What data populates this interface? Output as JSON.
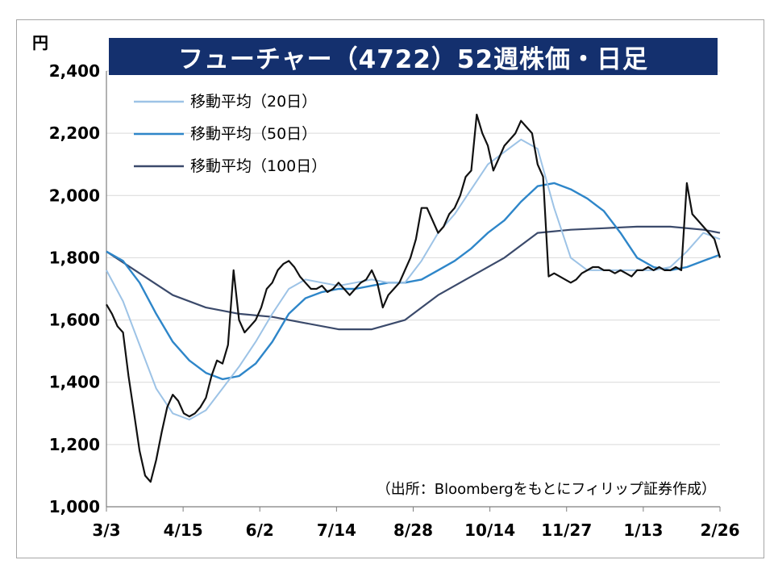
{
  "chart_data": {
    "type": "line",
    "title": "フューチャー（4722）52週株価・日足",
    "unit_label": "円",
    "source_note": "（出所：Bloombergをもとにフィリップ証券作成）",
    "ylim": [
      1000,
      2400
    ],
    "yticks": [
      "1,000",
      "1,200",
      "1,400",
      "1,600",
      "1,800",
      "2,000",
      "2,200",
      "2,400"
    ],
    "ytick_values": [
      1000,
      1200,
      1400,
      1600,
      1800,
      2000,
      2200,
      2400
    ],
    "xticks": [
      "3/3",
      "4/15",
      "6/2",
      "7/14",
      "8/28",
      "10/14",
      "11/27",
      "1/13",
      "2/26"
    ],
    "grid": true,
    "legend_position": "top-left",
    "colors": {
      "price": "#111111",
      "ma20": "#9dc3e6",
      "ma50": "#2e86c9",
      "ma100": "#3b4a6b"
    },
    "series": [
      {
        "name": "price",
        "values": [
          [
            0,
            1650
          ],
          [
            1,
            1620
          ],
          [
            2,
            1580
          ],
          [
            3,
            1560
          ],
          [
            4,
            1420
          ],
          [
            5,
            1300
          ],
          [
            6,
            1180
          ],
          [
            7,
            1100
          ],
          [
            8,
            1080
          ],
          [
            9,
            1150
          ],
          [
            10,
            1240
          ],
          [
            11,
            1320
          ],
          [
            12,
            1360
          ],
          [
            13,
            1340
          ],
          [
            14,
            1300
          ],
          [
            15,
            1290
          ],
          [
            16,
            1300
          ],
          [
            17,
            1320
          ],
          [
            18,
            1350
          ],
          [
            19,
            1420
          ],
          [
            20,
            1470
          ],
          [
            21,
            1460
          ],
          [
            22,
            1520
          ],
          [
            23,
            1760
          ],
          [
            24,
            1600
          ],
          [
            25,
            1560
          ],
          [
            26,
            1580
          ],
          [
            27,
            1600
          ],
          [
            28,
            1640
          ],
          [
            29,
            1700
          ],
          [
            30,
            1720
          ],
          [
            31,
            1760
          ],
          [
            32,
            1780
          ],
          [
            33,
            1790
          ],
          [
            34,
            1770
          ],
          [
            35,
            1740
          ],
          [
            36,
            1720
          ],
          [
            37,
            1700
          ],
          [
            38,
            1700
          ],
          [
            39,
            1710
          ],
          [
            40,
            1690
          ],
          [
            41,
            1700
          ],
          [
            42,
            1720
          ],
          [
            43,
            1700
          ],
          [
            44,
            1680
          ],
          [
            45,
            1700
          ],
          [
            46,
            1720
          ],
          [
            47,
            1730
          ],
          [
            48,
            1760
          ],
          [
            49,
            1720
          ],
          [
            50,
            1640
          ],
          [
            51,
            1680
          ],
          [
            52,
            1700
          ],
          [
            53,
            1720
          ],
          [
            54,
            1760
          ],
          [
            55,
            1800
          ],
          [
            56,
            1860
          ],
          [
            57,
            1960
          ],
          [
            58,
            1960
          ],
          [
            59,
            1920
          ],
          [
            60,
            1880
          ],
          [
            61,
            1900
          ],
          [
            62,
            1940
          ],
          [
            63,
            1960
          ],
          [
            64,
            2000
          ],
          [
            65,
            2060
          ],
          [
            66,
            2080
          ],
          [
            67,
            2260
          ],
          [
            68,
            2200
          ],
          [
            69,
            2160
          ],
          [
            70,
            2080
          ],
          [
            71,
            2120
          ],
          [
            72,
            2160
          ],
          [
            73,
            2180
          ],
          [
            74,
            2200
          ],
          [
            75,
            2240
          ],
          [
            76,
            2220
          ],
          [
            77,
            2200
          ],
          [
            78,
            2100
          ],
          [
            79,
            2060
          ],
          [
            80,
            1740
          ],
          [
            81,
            1750
          ],
          [
            82,
            1740
          ],
          [
            83,
            1730
          ],
          [
            84,
            1720
          ],
          [
            85,
            1730
          ],
          [
            86,
            1750
          ],
          [
            87,
            1760
          ],
          [
            88,
            1770
          ],
          [
            89,
            1770
          ],
          [
            90,
            1760
          ],
          [
            91,
            1760
          ],
          [
            92,
            1750
          ],
          [
            93,
            1760
          ],
          [
            94,
            1750
          ],
          [
            95,
            1740
          ],
          [
            96,
            1760
          ],
          [
            97,
            1760
          ],
          [
            98,
            1770
          ],
          [
            99,
            1760
          ],
          [
            100,
            1770
          ],
          [
            101,
            1760
          ],
          [
            102,
            1760
          ],
          [
            103,
            1770
          ],
          [
            104,
            1760
          ],
          [
            105,
            2040
          ],
          [
            106,
            1940
          ],
          [
            107,
            1920
          ],
          [
            108,
            1900
          ],
          [
            109,
            1880
          ],
          [
            110,
            1860
          ],
          [
            111,
            1800
          ]
        ]
      },
      {
        "name": "移動平均（20日）",
        "values": [
          [
            0,
            1760
          ],
          [
            3,
            1660
          ],
          [
            6,
            1520
          ],
          [
            9,
            1380
          ],
          [
            12,
            1300
          ],
          [
            15,
            1280
          ],
          [
            18,
            1310
          ],
          [
            21,
            1380
          ],
          [
            24,
            1450
          ],
          [
            27,
            1530
          ],
          [
            30,
            1620
          ],
          [
            33,
            1700
          ],
          [
            36,
            1730
          ],
          [
            39,
            1720
          ],
          [
            42,
            1710
          ],
          [
            45,
            1720
          ],
          [
            48,
            1730
          ],
          [
            51,
            1720
          ],
          [
            54,
            1720
          ],
          [
            57,
            1790
          ],
          [
            60,
            1880
          ],
          [
            63,
            1940
          ],
          [
            66,
            2020
          ],
          [
            69,
            2100
          ],
          [
            72,
            2140
          ],
          [
            75,
            2180
          ],
          [
            78,
            2150
          ],
          [
            81,
            1960
          ],
          [
            84,
            1800
          ],
          [
            87,
            1760
          ],
          [
            90,
            1760
          ],
          [
            93,
            1760
          ],
          [
            96,
            1760
          ],
          [
            99,
            1760
          ],
          [
            102,
            1770
          ],
          [
            105,
            1820
          ],
          [
            108,
            1880
          ],
          [
            111,
            1860
          ]
        ]
      },
      {
        "name": "移動平均（50日）",
        "values": [
          [
            0,
            1820
          ],
          [
            3,
            1790
          ],
          [
            6,
            1720
          ],
          [
            9,
            1620
          ],
          [
            12,
            1530
          ],
          [
            15,
            1470
          ],
          [
            18,
            1430
          ],
          [
            21,
            1410
          ],
          [
            24,
            1420
          ],
          [
            27,
            1460
          ],
          [
            30,
            1530
          ],
          [
            33,
            1620
          ],
          [
            36,
            1670
          ],
          [
            39,
            1690
          ],
          [
            42,
            1700
          ],
          [
            45,
            1700
          ],
          [
            48,
            1710
          ],
          [
            51,
            1720
          ],
          [
            54,
            1720
          ],
          [
            57,
            1730
          ],
          [
            60,
            1760
          ],
          [
            63,
            1790
          ],
          [
            66,
            1830
          ],
          [
            69,
            1880
          ],
          [
            72,
            1920
          ],
          [
            75,
            1980
          ],
          [
            78,
            2030
          ],
          [
            81,
            2040
          ],
          [
            84,
            2020
          ],
          [
            87,
            1990
          ],
          [
            90,
            1950
          ],
          [
            93,
            1880
          ],
          [
            96,
            1800
          ],
          [
            99,
            1770
          ],
          [
            102,
            1760
          ],
          [
            105,
            1770
          ],
          [
            108,
            1790
          ],
          [
            111,
            1810
          ]
        ]
      },
      {
        "name": "移動平均（100日）",
        "values": [
          [
            0,
            1820
          ],
          [
            6,
            1750
          ],
          [
            12,
            1680
          ],
          [
            18,
            1640
          ],
          [
            24,
            1620
          ],
          [
            30,
            1610
          ],
          [
            36,
            1590
          ],
          [
            42,
            1570
          ],
          [
            48,
            1570
          ],
          [
            54,
            1600
          ],
          [
            60,
            1680
          ],
          [
            66,
            1740
          ],
          [
            72,
            1800
          ],
          [
            78,
            1880
          ],
          [
            84,
            1890
          ],
          [
            90,
            1895
          ],
          [
            96,
            1900
          ],
          [
            102,
            1900
          ],
          [
            108,
            1890
          ],
          [
            111,
            1880
          ]
        ]
      }
    ]
  }
}
